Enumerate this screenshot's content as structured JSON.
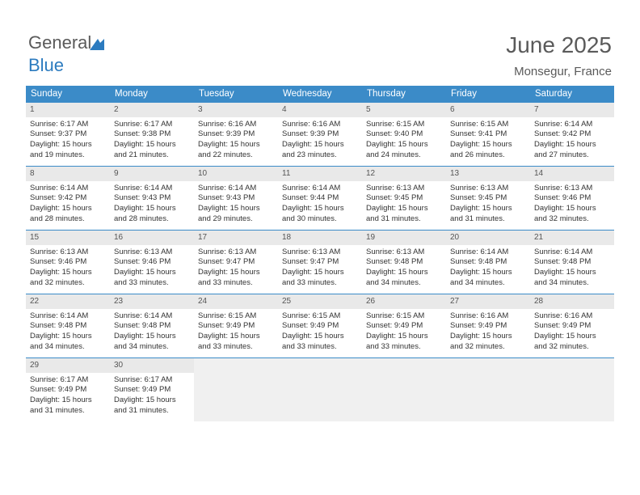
{
  "brand": {
    "part1": "General",
    "part2": "Blue"
  },
  "title": "June 2025",
  "location": "Monsegur, France",
  "colors": {
    "header_bg": "#3b8bc8",
    "header_fg": "#ffffff",
    "daynum_bg": "#e9e9e9",
    "border": "#3b8bc8",
    "text": "#333333",
    "title_color": "#5a5a5a"
  },
  "weekdays": [
    "Sunday",
    "Monday",
    "Tuesday",
    "Wednesday",
    "Thursday",
    "Friday",
    "Saturday"
  ],
  "weeks": [
    [
      {
        "n": "1",
        "sunrise": "6:17 AM",
        "sunset": "9:37 PM",
        "day_h": "15",
        "day_m": "19"
      },
      {
        "n": "2",
        "sunrise": "6:17 AM",
        "sunset": "9:38 PM",
        "day_h": "15",
        "day_m": "21"
      },
      {
        "n": "3",
        "sunrise": "6:16 AM",
        "sunset": "9:39 PM",
        "day_h": "15",
        "day_m": "22"
      },
      {
        "n": "4",
        "sunrise": "6:16 AM",
        "sunset": "9:39 PM",
        "day_h": "15",
        "day_m": "23"
      },
      {
        "n": "5",
        "sunrise": "6:15 AM",
        "sunset": "9:40 PM",
        "day_h": "15",
        "day_m": "24"
      },
      {
        "n": "6",
        "sunrise": "6:15 AM",
        "sunset": "9:41 PM",
        "day_h": "15",
        "day_m": "26"
      },
      {
        "n": "7",
        "sunrise": "6:14 AM",
        "sunset": "9:42 PM",
        "day_h": "15",
        "day_m": "27"
      }
    ],
    [
      {
        "n": "8",
        "sunrise": "6:14 AM",
        "sunset": "9:42 PM",
        "day_h": "15",
        "day_m": "28"
      },
      {
        "n": "9",
        "sunrise": "6:14 AM",
        "sunset": "9:43 PM",
        "day_h": "15",
        "day_m": "28"
      },
      {
        "n": "10",
        "sunrise": "6:14 AM",
        "sunset": "9:43 PM",
        "day_h": "15",
        "day_m": "29"
      },
      {
        "n": "11",
        "sunrise": "6:14 AM",
        "sunset": "9:44 PM",
        "day_h": "15",
        "day_m": "30"
      },
      {
        "n": "12",
        "sunrise": "6:13 AM",
        "sunset": "9:45 PM",
        "day_h": "15",
        "day_m": "31"
      },
      {
        "n": "13",
        "sunrise": "6:13 AM",
        "sunset": "9:45 PM",
        "day_h": "15",
        "day_m": "31"
      },
      {
        "n": "14",
        "sunrise": "6:13 AM",
        "sunset": "9:46 PM",
        "day_h": "15",
        "day_m": "32"
      }
    ],
    [
      {
        "n": "15",
        "sunrise": "6:13 AM",
        "sunset": "9:46 PM",
        "day_h": "15",
        "day_m": "32"
      },
      {
        "n": "16",
        "sunrise": "6:13 AM",
        "sunset": "9:46 PM",
        "day_h": "15",
        "day_m": "33"
      },
      {
        "n": "17",
        "sunrise": "6:13 AM",
        "sunset": "9:47 PM",
        "day_h": "15",
        "day_m": "33"
      },
      {
        "n": "18",
        "sunrise": "6:13 AM",
        "sunset": "9:47 PM",
        "day_h": "15",
        "day_m": "33"
      },
      {
        "n": "19",
        "sunrise": "6:13 AM",
        "sunset": "9:48 PM",
        "day_h": "15",
        "day_m": "34"
      },
      {
        "n": "20",
        "sunrise": "6:14 AM",
        "sunset": "9:48 PM",
        "day_h": "15",
        "day_m": "34"
      },
      {
        "n": "21",
        "sunrise": "6:14 AM",
        "sunset": "9:48 PM",
        "day_h": "15",
        "day_m": "34"
      }
    ],
    [
      {
        "n": "22",
        "sunrise": "6:14 AM",
        "sunset": "9:48 PM",
        "day_h": "15",
        "day_m": "34"
      },
      {
        "n": "23",
        "sunrise": "6:14 AM",
        "sunset": "9:48 PM",
        "day_h": "15",
        "day_m": "34"
      },
      {
        "n": "24",
        "sunrise": "6:15 AM",
        "sunset": "9:49 PM",
        "day_h": "15",
        "day_m": "33"
      },
      {
        "n": "25",
        "sunrise": "6:15 AM",
        "sunset": "9:49 PM",
        "day_h": "15",
        "day_m": "33"
      },
      {
        "n": "26",
        "sunrise": "6:15 AM",
        "sunset": "9:49 PM",
        "day_h": "15",
        "day_m": "33"
      },
      {
        "n": "27",
        "sunrise": "6:16 AM",
        "sunset": "9:49 PM",
        "day_h": "15",
        "day_m": "32"
      },
      {
        "n": "28",
        "sunrise": "6:16 AM",
        "sunset": "9:49 PM",
        "day_h": "15",
        "day_m": "32"
      }
    ],
    [
      {
        "n": "29",
        "sunrise": "6:17 AM",
        "sunset": "9:49 PM",
        "day_h": "15",
        "day_m": "31"
      },
      {
        "n": "30",
        "sunrise": "6:17 AM",
        "sunset": "9:49 PM",
        "day_h": "15",
        "day_m": "31"
      },
      null,
      null,
      null,
      null,
      null
    ]
  ],
  "labels": {
    "sunrise_prefix": "Sunrise: ",
    "sunset_prefix": "Sunset: ",
    "daylight_prefix": "Daylight: ",
    "hours_word": " hours",
    "and_word": "and ",
    "minutes_word": " minutes."
  }
}
